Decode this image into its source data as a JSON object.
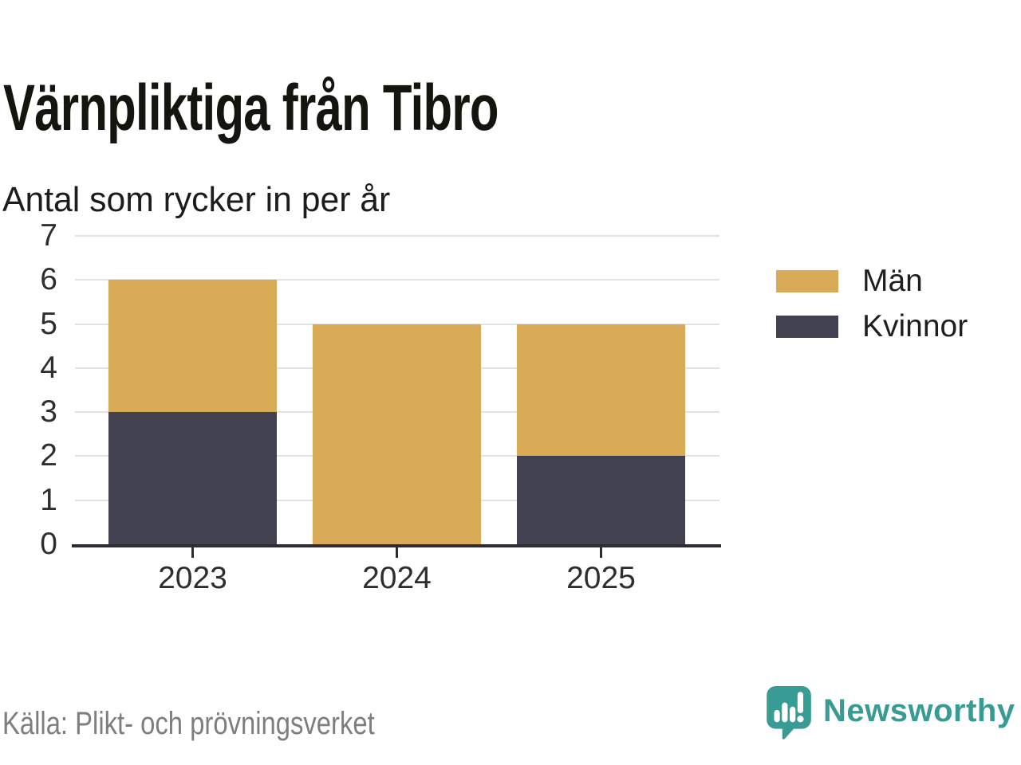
{
  "header": {
    "title": "Värnpliktiga från Tibro",
    "subtitle": "Antal som rycker in per år"
  },
  "footer": {
    "source": "Källa: Plikt- och prövningsverket",
    "brand_name": "Newsworthy",
    "brand_icon": "newsworthy-speech-bubble-bar-chart-icon"
  },
  "colors": {
    "men": "#d9ab57",
    "women": "#424150",
    "grid": "#e3e3e3",
    "axis": "#2d2c32",
    "brand": "#399c94"
  },
  "legend": {
    "position": "right",
    "items": [
      {
        "label": "Män",
        "color": "#d9ab57"
      },
      {
        "label": "Kvinnor",
        "color": "#424150"
      }
    ]
  },
  "chart_data": {
    "type": "bar",
    "stacked": true,
    "title": "Värnpliktiga från Tibro",
    "subtitle": "Antal som rycker in per år",
    "categories": [
      "2023",
      "2024",
      "2025"
    ],
    "series": [
      {
        "name": "Män",
        "color": "#d9ab57",
        "values": [
          3,
          5,
          3
        ]
      },
      {
        "name": "Kvinnor",
        "color": "#424150",
        "values": [
          3,
          0,
          2
        ]
      }
    ],
    "totals": [
      6,
      5,
      5
    ],
    "xlabel": "",
    "ylabel": "",
    "ylim": [
      0,
      7
    ],
    "yticks": [
      0,
      1,
      2,
      3,
      4,
      5,
      6,
      7
    ],
    "grid": true,
    "legend_position": "right",
    "source": "Källa: Plikt- och prövningsverket"
  }
}
